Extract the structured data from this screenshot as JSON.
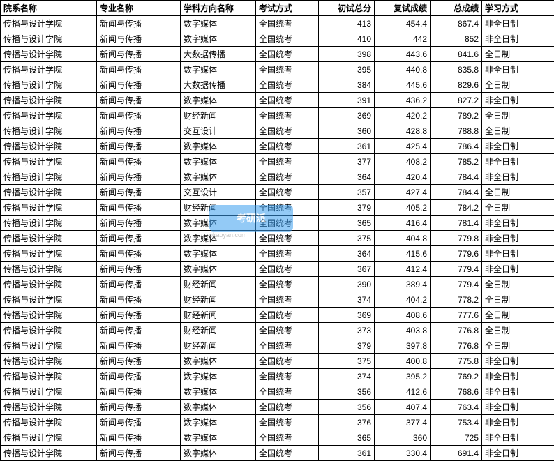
{
  "table": {
    "columns": [
      "院系名称",
      "专业名称",
      "学科方向名称",
      "考试方式",
      "初试总分",
      "复试成绩",
      "总成绩",
      "学习方式"
    ],
    "column_classes": [
      "col-dept",
      "col-major",
      "col-direction",
      "col-exam",
      "col-score1",
      "col-score2",
      "col-total",
      "col-mode"
    ],
    "column_align": [
      "left",
      "left",
      "left",
      "left",
      "right",
      "right",
      "right",
      "left"
    ],
    "rows": [
      [
        "传播与设计学院",
        "新闻与传播",
        "数字媒体",
        "全国统考",
        "413",
        "454.4",
        "867.4",
        "非全日制"
      ],
      [
        "传播与设计学院",
        "新闻与传播",
        "数字媒体",
        "全国统考",
        "410",
        "442",
        "852",
        "非全日制"
      ],
      [
        "传播与设计学院",
        "新闻与传播",
        "大数据传播",
        "全国统考",
        "398",
        "443.6",
        "841.6",
        "全日制"
      ],
      [
        "传播与设计学院",
        "新闻与传播",
        "数字媒体",
        "全国统考",
        "395",
        "440.8",
        "835.8",
        "非全日制"
      ],
      [
        "传播与设计学院",
        "新闻与传播",
        "大数据传播",
        "全国统考",
        "384",
        "445.6",
        "829.6",
        "全日制"
      ],
      [
        "传播与设计学院",
        "新闻与传播",
        "数字媒体",
        "全国统考",
        "391",
        "436.2",
        "827.2",
        "非全日制"
      ],
      [
        "传播与设计学院",
        "新闻与传播",
        "财经新闻",
        "全国统考",
        "369",
        "420.2",
        "789.2",
        "全日制"
      ],
      [
        "传播与设计学院",
        "新闻与传播",
        "交互设计",
        "全国统考",
        "360",
        "428.8",
        "788.8",
        "全日制"
      ],
      [
        "传播与设计学院",
        "新闻与传播",
        "数字媒体",
        "全国统考",
        "361",
        "425.4",
        "786.4",
        "非全日制"
      ],
      [
        "传播与设计学院",
        "新闻与传播",
        "数字媒体",
        "全国统考",
        "377",
        "408.2",
        "785.2",
        "非全日制"
      ],
      [
        "传播与设计学院",
        "新闻与传播",
        "数字媒体",
        "全国统考",
        "364",
        "420.4",
        "784.4",
        "非全日制"
      ],
      [
        "传播与设计学院",
        "新闻与传播",
        "交互设计",
        "全国统考",
        "357",
        "427.4",
        "784.4",
        "全日制"
      ],
      [
        "传播与设计学院",
        "新闻与传播",
        "财经新闻",
        "全国统考",
        "379",
        "405.2",
        "784.2",
        "全日制"
      ],
      [
        "传播与设计学院",
        "新闻与传播",
        "数字媒体",
        "全国统考",
        "365",
        "416.4",
        "781.4",
        "非全日制"
      ],
      [
        "传播与设计学院",
        "新闻与传播",
        "数字媒体",
        "全国统考",
        "375",
        "404.8",
        "779.8",
        "非全日制"
      ],
      [
        "传播与设计学院",
        "新闻与传播",
        "数字媒体",
        "全国统考",
        "364",
        "415.6",
        "779.6",
        "非全日制"
      ],
      [
        "传播与设计学院",
        "新闻与传播",
        "数字媒体",
        "全国统考",
        "367",
        "412.4",
        "779.4",
        "非全日制"
      ],
      [
        "传播与设计学院",
        "新闻与传播",
        "财经新闻",
        "全国统考",
        "390",
        "389.4",
        "779.4",
        "全日制"
      ],
      [
        "传播与设计学院",
        "新闻与传播",
        "财经新闻",
        "全国统考",
        "374",
        "404.2",
        "778.2",
        "全日制"
      ],
      [
        "传播与设计学院",
        "新闻与传播",
        "财经新闻",
        "全国统考",
        "369",
        "408.6",
        "777.6",
        "全日制"
      ],
      [
        "传播与设计学院",
        "新闻与传播",
        "财经新闻",
        "全国统考",
        "373",
        "403.8",
        "776.8",
        "全日制"
      ],
      [
        "传播与设计学院",
        "新闻与传播",
        "财经新闻",
        "全国统考",
        "379",
        "397.8",
        "776.8",
        "全日制"
      ],
      [
        "传播与设计学院",
        "新闻与传播",
        "数字媒体",
        "全国统考",
        "375",
        "400.8",
        "775.8",
        "非全日制"
      ],
      [
        "传播与设计学院",
        "新闻与传播",
        "数字媒体",
        "全国统考",
        "374",
        "395.2",
        "769.2",
        "非全日制"
      ],
      [
        "传播与设计学院",
        "新闻与传播",
        "数字媒体",
        "全国统考",
        "356",
        "412.6",
        "768.6",
        "非全日制"
      ],
      [
        "传播与设计学院",
        "新闻与传播",
        "数字媒体",
        "全国统考",
        "356",
        "407.4",
        "763.4",
        "非全日制"
      ],
      [
        "传播与设计学院",
        "新闻与传播",
        "数字媒体",
        "全国统考",
        "376",
        "377.4",
        "753.4",
        "非全日制"
      ],
      [
        "传播与设计学院",
        "新闻与传播",
        "数字媒体",
        "全国统考",
        "365",
        "360",
        "725",
        "非全日制"
      ],
      [
        "传播与设计学院",
        "新闻与传播",
        "数字媒体",
        "全国统考",
        "361",
        "330.4",
        "691.4",
        "非全日制"
      ]
    ],
    "border_color": "#000000",
    "header_bg": "#ffffff",
    "row_bg": "#ffffff",
    "font_size": 12
  },
  "watermark": {
    "text": "考研派",
    "sub": "okaoyan.com",
    "bg_color": "#3b9ff0"
  }
}
